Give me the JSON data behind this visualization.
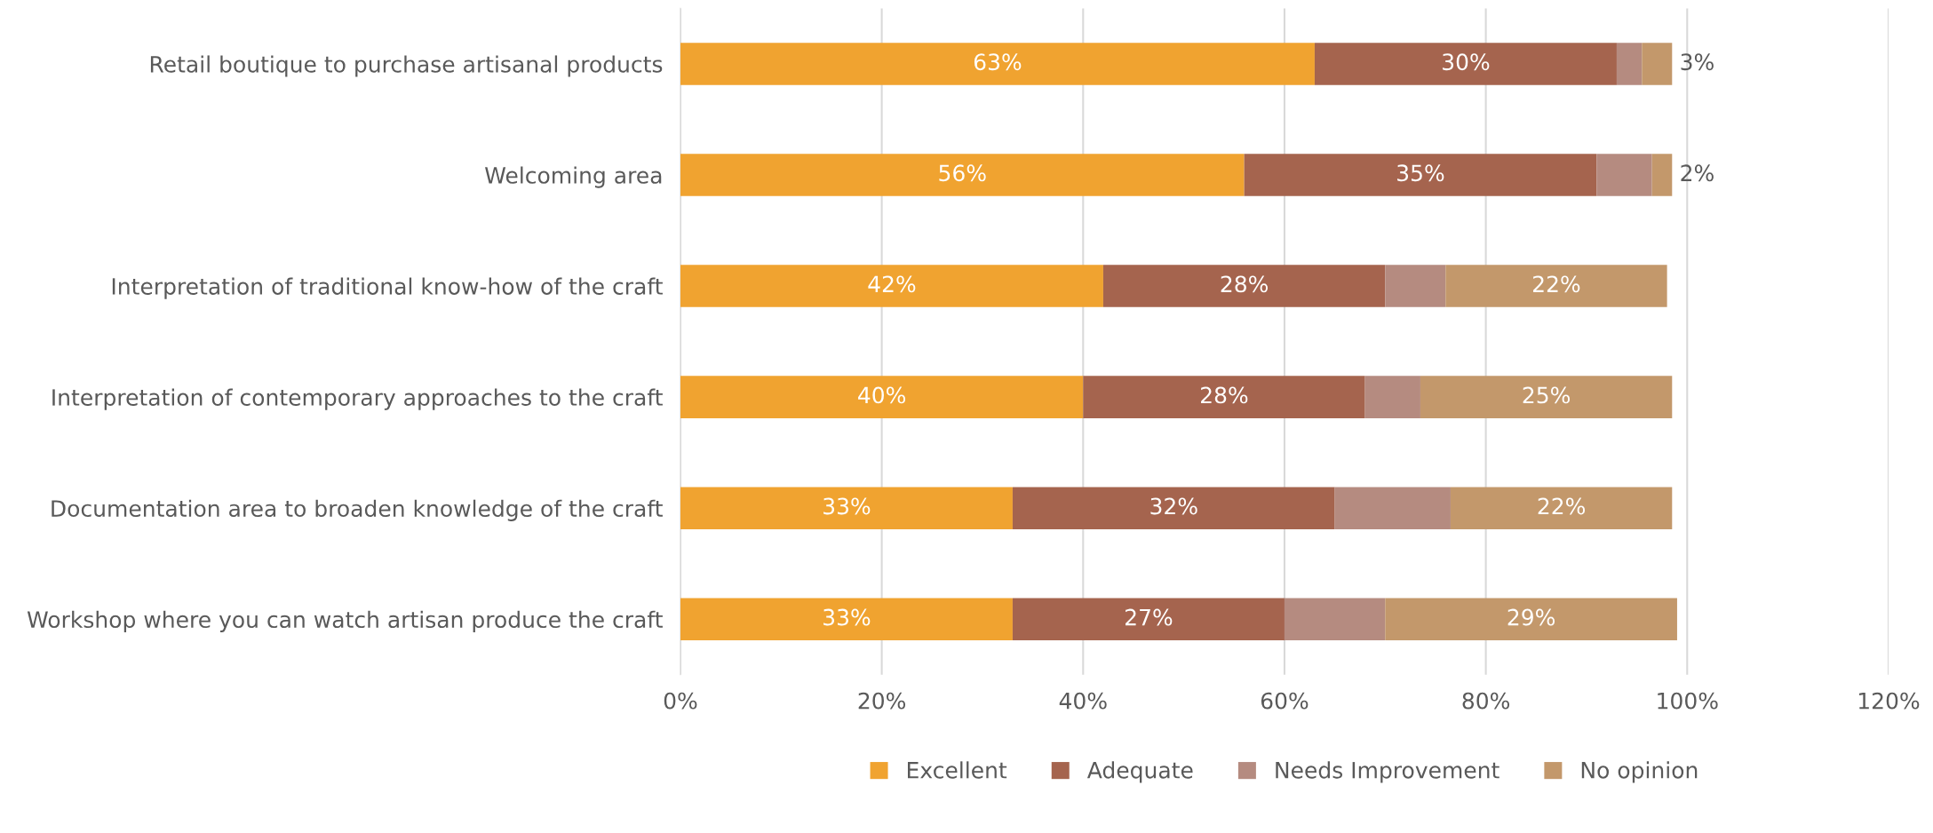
{
  "chart_data": {
    "type": "bar",
    "orientation": "horizontal",
    "stacked": true,
    "categories": [
      "Retail boutique to purchase artisanal products",
      "Welcoming area",
      "Interpretation of traditional know-how of the craft",
      "Interpretation of contemporary approaches to the craft",
      "Documentation area to broaden knowledge of the craft",
      "Workshop where you can watch artisan produce the craft"
    ],
    "series": [
      {
        "name": "Excellent",
        "color": "#f0a330",
        "values": [
          63,
          56,
          42,
          40,
          33,
          33
        ],
        "value_labels": [
          "63%",
          "56%",
          "42%",
          "40%",
          "33%",
          "33%"
        ]
      },
      {
        "name": "Adequate",
        "color": "#a5644e",
        "values": [
          30,
          35,
          28,
          28,
          32,
          27
        ],
        "value_labels": [
          "30%",
          "35%",
          "28%",
          "28%",
          "32%",
          "27%"
        ]
      },
      {
        "name": "Needs Improvement",
        "color": "#b58b80",
        "values": [
          2.5,
          5.5,
          6,
          5.5,
          11.5,
          10
        ],
        "value_labels": [
          null,
          null,
          null,
          null,
          null,
          null
        ]
      },
      {
        "name": "No opinion",
        "color": "#c3986b",
        "values": [
          3,
          2,
          22,
          25,
          22,
          29
        ],
        "value_labels": [
          "3%",
          "2%",
          "22%",
          "25%",
          "22%",
          "29%"
        ]
      }
    ],
    "xlim": [
      0,
      120
    ],
    "xticks": [
      {
        "value": 0,
        "label": "0%"
      },
      {
        "value": 20,
        "label": "20%"
      },
      {
        "value": 40,
        "label": "40%"
      },
      {
        "value": 60,
        "label": "60%"
      },
      {
        "value": 80,
        "label": "80%"
      },
      {
        "value": 100,
        "label": "100%"
      },
      {
        "value": 120,
        "label": "120%"
      }
    ],
    "grid": "x",
    "legend": "bottom"
  }
}
